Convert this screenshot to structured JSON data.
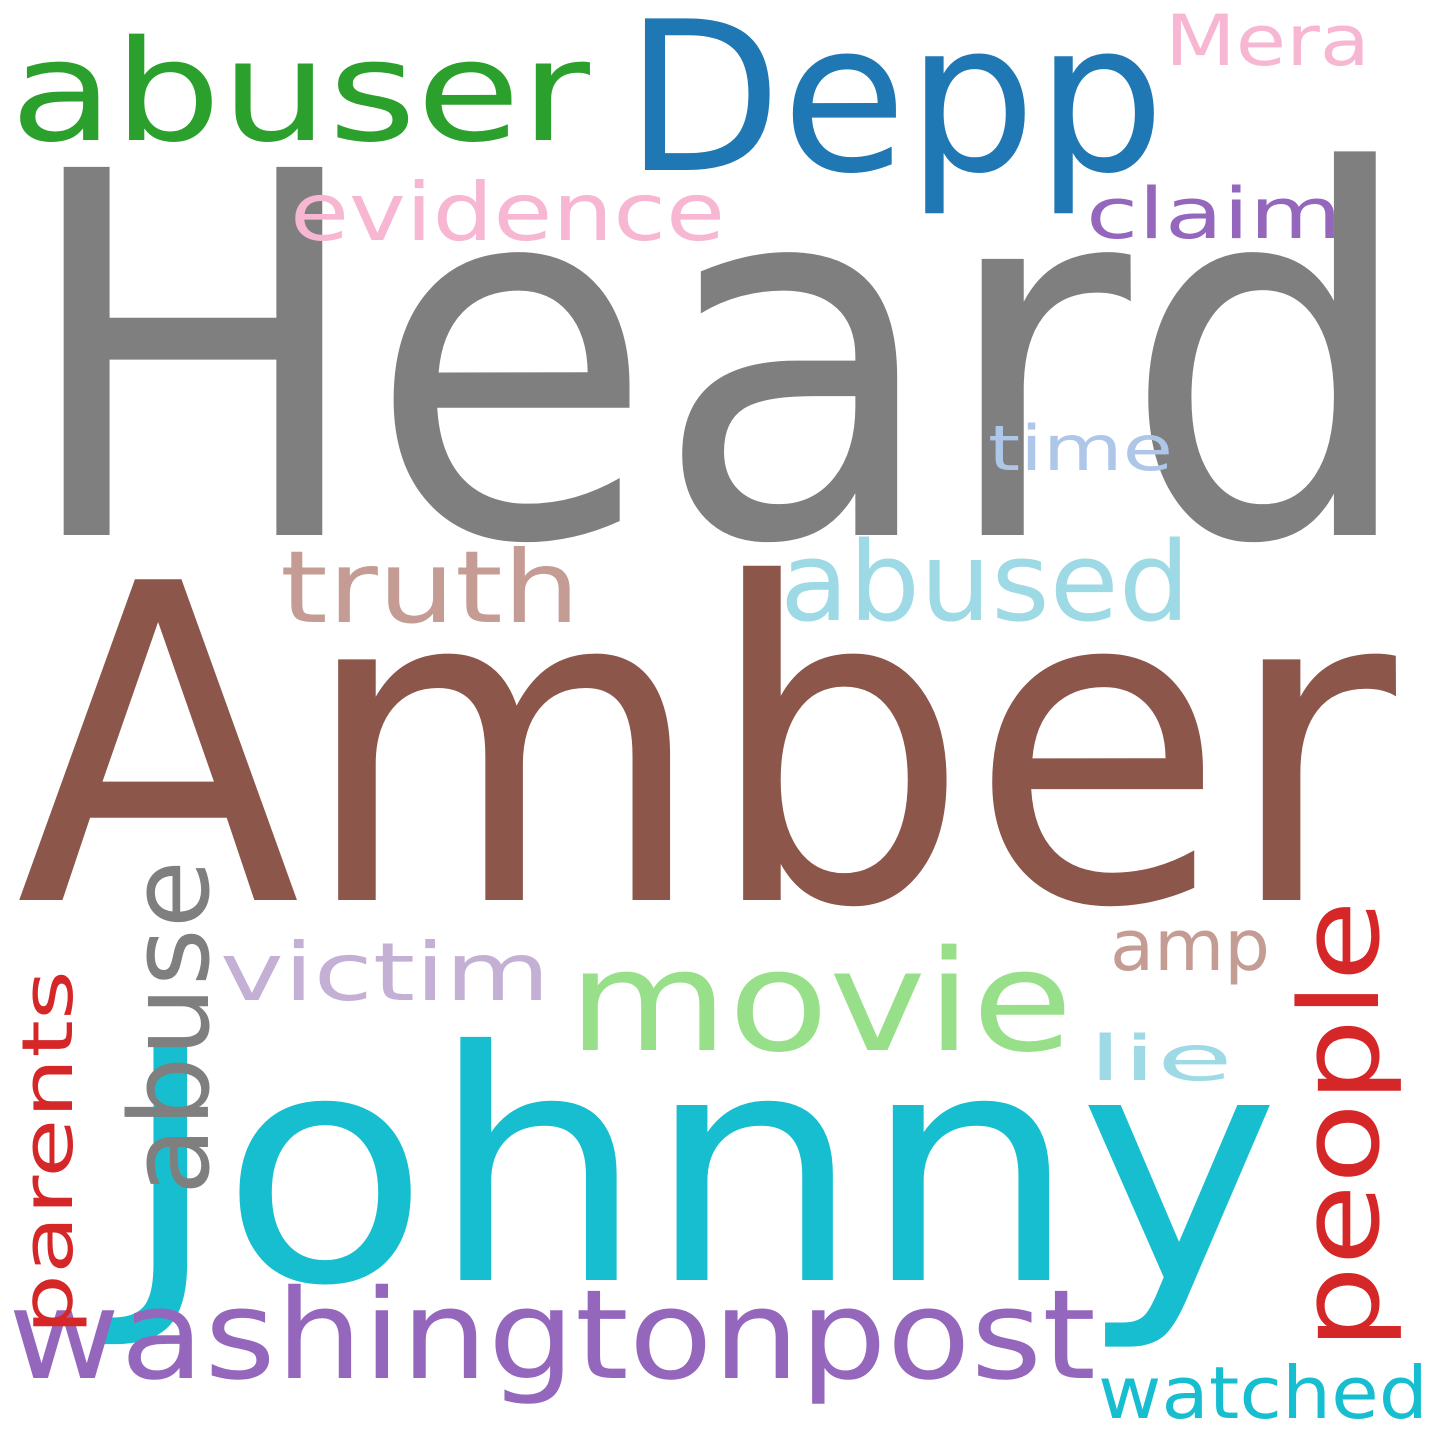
{
  "words": [
    {
      "key": "heard",
      "text": "Heard",
      "color": "#7f7f7f"
    },
    {
      "key": "amber",
      "text": "Amber",
      "color": "#8c564b"
    },
    {
      "key": "johnny",
      "text": "Johnny",
      "color": "#17becf"
    },
    {
      "key": "depp",
      "text": "Depp",
      "color": "#1f77b4"
    },
    {
      "key": "abuser",
      "text": "abuser",
      "color": "#2ca02c"
    },
    {
      "key": "washingtonpost",
      "text": "washingtonpost",
      "color": "#9467bd"
    },
    {
      "key": "movie",
      "text": "movie",
      "color": "#98df8a"
    },
    {
      "key": "abuse",
      "text": "abuse",
      "color": "#7f7f7f"
    },
    {
      "key": "people",
      "text": "people",
      "color": "#d62728"
    },
    {
      "key": "abused",
      "text": "abused",
      "color": "#9edae5"
    },
    {
      "key": "truth",
      "text": "truth",
      "color": "#c49c94"
    },
    {
      "key": "evidence",
      "text": "evidence",
      "color": "#f7b6d2"
    },
    {
      "key": "victim",
      "text": "victim",
      "color": "#c5b0d5"
    },
    {
      "key": "watched",
      "text": "watched",
      "color": "#17becf"
    },
    {
      "key": "parents",
      "text": "parents",
      "color": "#d62728"
    },
    {
      "key": "claim",
      "text": "claim",
      "color": "#9467bd"
    },
    {
      "key": "mera",
      "text": "Mera",
      "color": "#f7b6d2"
    },
    {
      "key": "time",
      "text": "time",
      "color": "#aec7e8"
    },
    {
      "key": "amp",
      "text": "amp",
      "color": "#c49c94"
    },
    {
      "key": "lie",
      "text": "lie",
      "color": "#9edae5"
    }
  ]
}
